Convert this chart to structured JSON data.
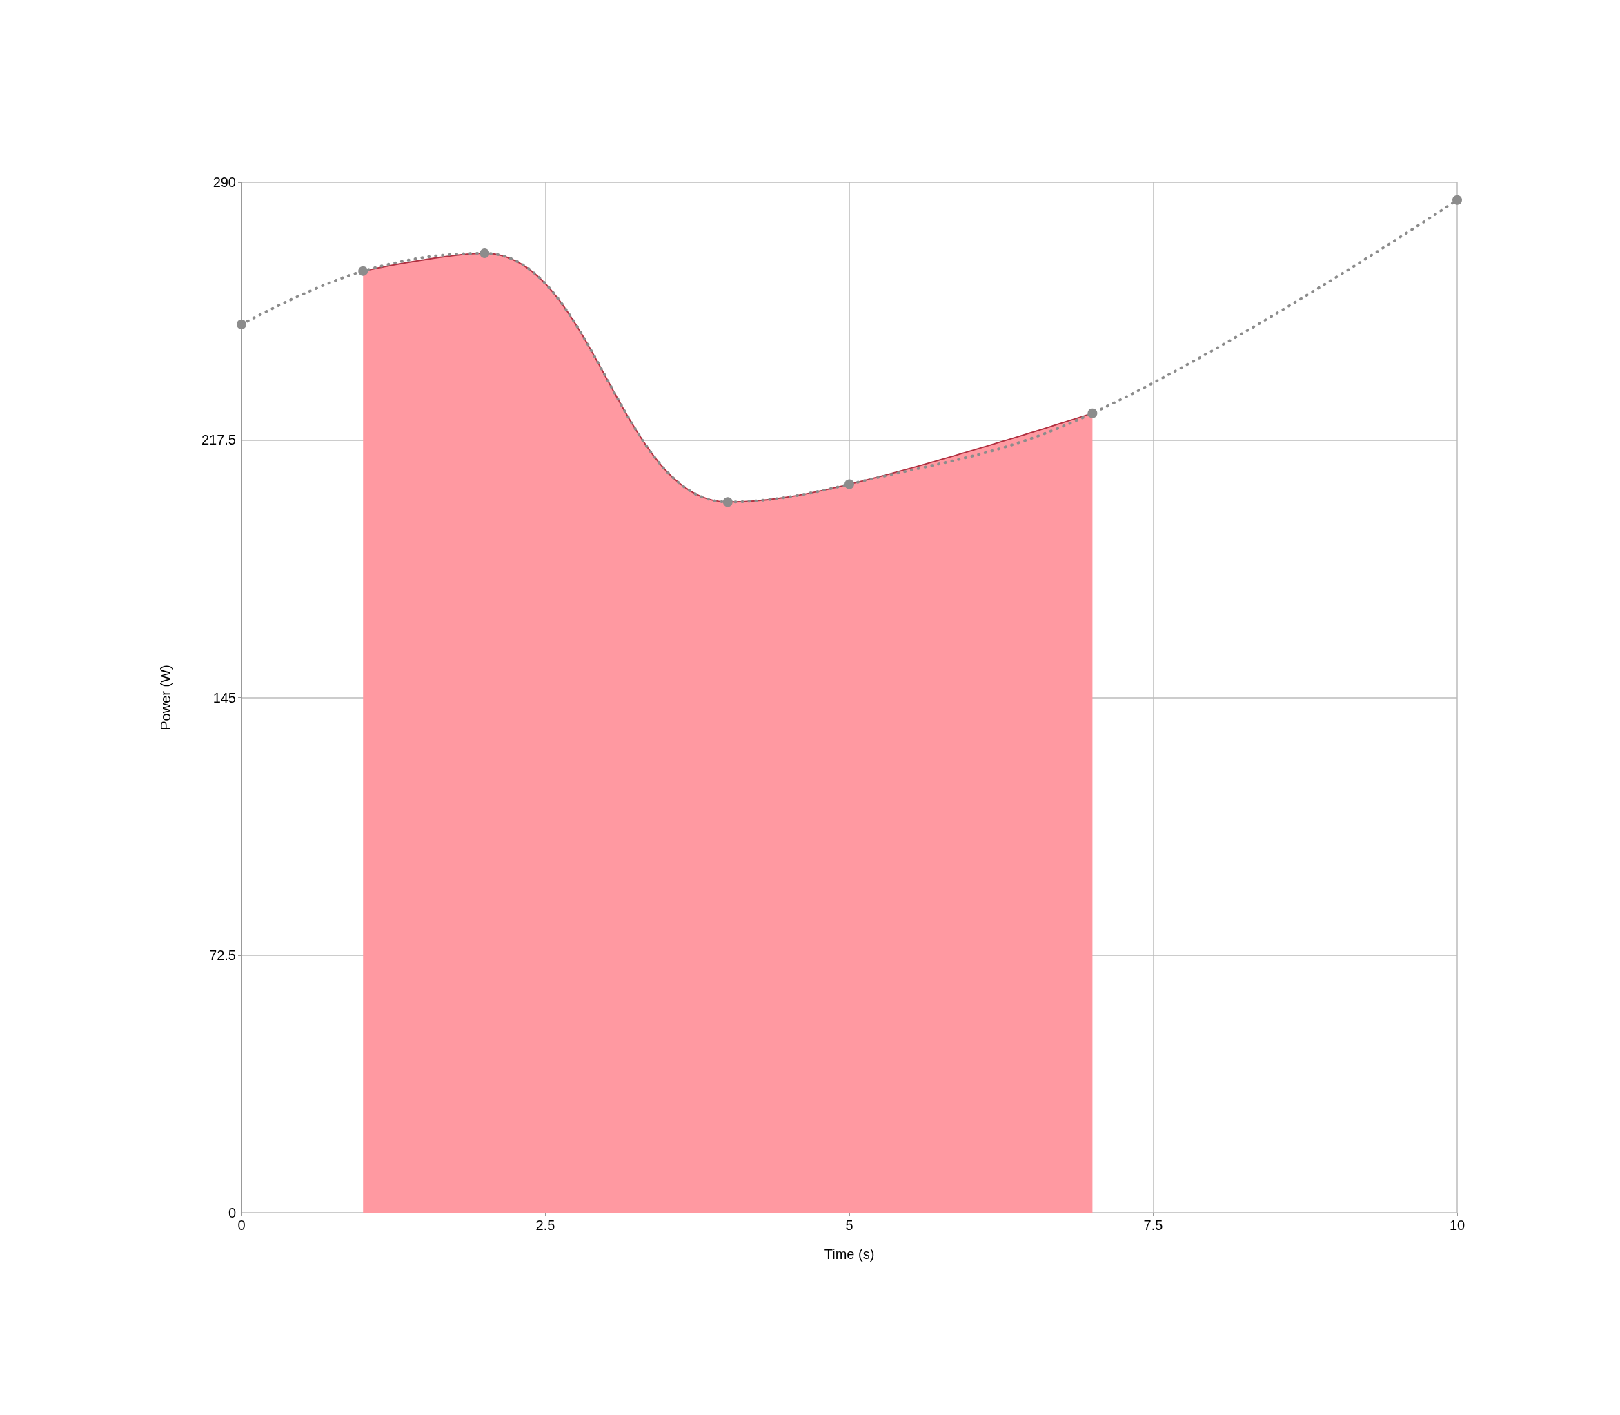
{
  "chart_data": {
    "type": "line",
    "xlabel": "Time (s)",
    "ylabel": "Power (W)",
    "xlim": [
      0,
      10
    ],
    "xticks": [
      0,
      2.5,
      5,
      7.5,
      10
    ],
    "ylim": [
      0,
      290
    ],
    "yticks": [
      0,
      72.5,
      145,
      217.5,
      290
    ],
    "grid": true,
    "series": [
      {
        "type": "area",
        "color": "#ff99a1",
        "x": [
          1,
          2,
          4,
          5,
          7
        ],
        "values": [
          265,
          270,
          200,
          205,
          225
        ]
      },
      {
        "color": "#8c8c8c",
        "x": [
          0,
          1,
          2,
          4,
          5,
          7,
          10
        ],
        "values": [
          250,
          265,
          270,
          200,
          205,
          225,
          285
        ],
        "marker": "circle",
        "line_style": "dotted"
      }
    ]
  }
}
